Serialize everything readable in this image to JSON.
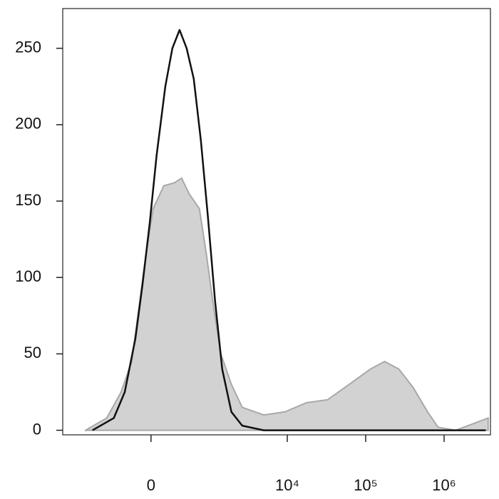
{
  "chart_data": {
    "type": "histogram-overlay",
    "xscale": "biexponential",
    "xlim": [
      -2430,
      3900000
    ],
    "ylim": [
      -3,
      276
    ],
    "xticks": [
      {
        "value": 0,
        "label": "0"
      },
      {
        "value": 10000,
        "label": "10⁴"
      },
      {
        "value": 100000,
        "label": "10⁵"
      },
      {
        "value": 1000000,
        "label": "10⁶"
      }
    ],
    "yticks": [
      0,
      50,
      100,
      150,
      200,
      250
    ],
    "series": [
      {
        "color": "#d2d2d2",
        "edge": "#a8a8a8",
        "fill": true,
        "x": [
          -1223,
          -622,
          -364,
          -218,
          -133,
          -54,
          23,
          141,
          273,
          375,
          497,
          714,
          897,
          1124,
          1398,
          1922,
          2654,
          5014,
          9333,
          17500,
          32800,
          61500,
          114600,
          174600,
          265000,
          403000,
          615000,
          838000,
          1409000,
          3645000
        ],
        "values": [
          0,
          8,
          25,
          45,
          80,
          115,
          145,
          160,
          162,
          165,
          155,
          145,
          115,
          80,
          50,
          30,
          15,
          10,
          12,
          18,
          20,
          30,
          40,
          45,
          40,
          28,
          12,
          2,
          0,
          8
        ]
      },
      {
        "color": "#111111",
        "fill": false,
        "x": [
          -988,
          -483,
          -311,
          -174,
          -93,
          -15,
          61,
          158,
          245,
          344,
          457,
          590,
          747,
          937,
          1171,
          1457,
          1922,
          2654,
          5014,
          3400000
        ],
        "values": [
          0,
          8,
          25,
          60,
          95,
          135,
          180,
          225,
          250,
          262,
          250,
          230,
          190,
          140,
          85,
          40,
          12,
          3,
          0,
          0
        ]
      }
    ]
  }
}
